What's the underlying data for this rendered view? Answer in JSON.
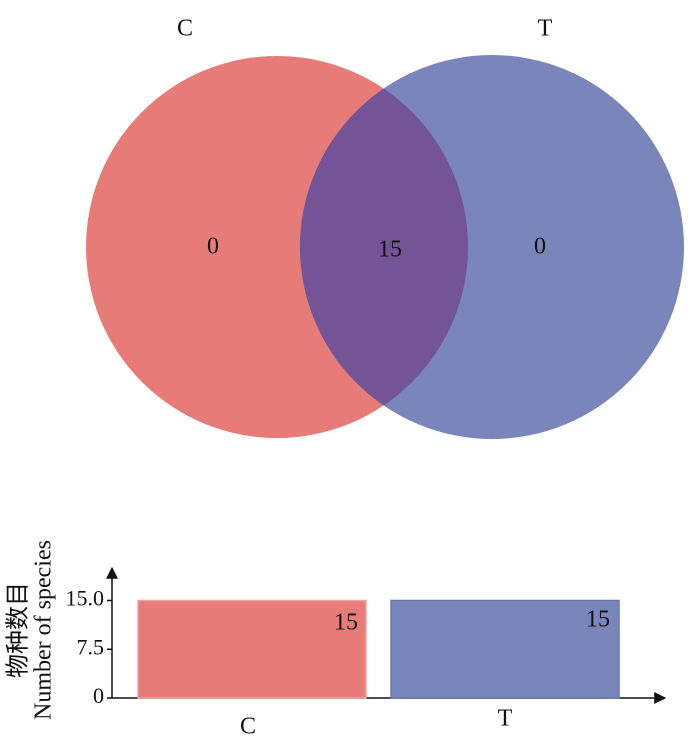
{
  "chart_data": [
    {
      "type": "venn",
      "sets": [
        {
          "name": "C",
          "color": "#e67b78"
        },
        {
          "name": "T",
          "color": "#7a86bb"
        }
      ],
      "values": [
        0,
        15,
        0
      ],
      "overlap_color": "#745396"
    },
    {
      "type": "bar",
      "y_label": [
        "物种数目",
        "Number of species"
      ],
      "categories": [
        "C",
        "T"
      ],
      "series": [
        {
          "values": [
            15,
            15
          ],
          "colors": [
            "#e67b78",
            "#7a86bb"
          ]
        }
      ],
      "ylim": [
        0,
        20
      ],
      "yticks": [
        0,
        7.5,
        {
          "value": 15,
          "label": "15.0"
        }
      ]
    }
  ]
}
